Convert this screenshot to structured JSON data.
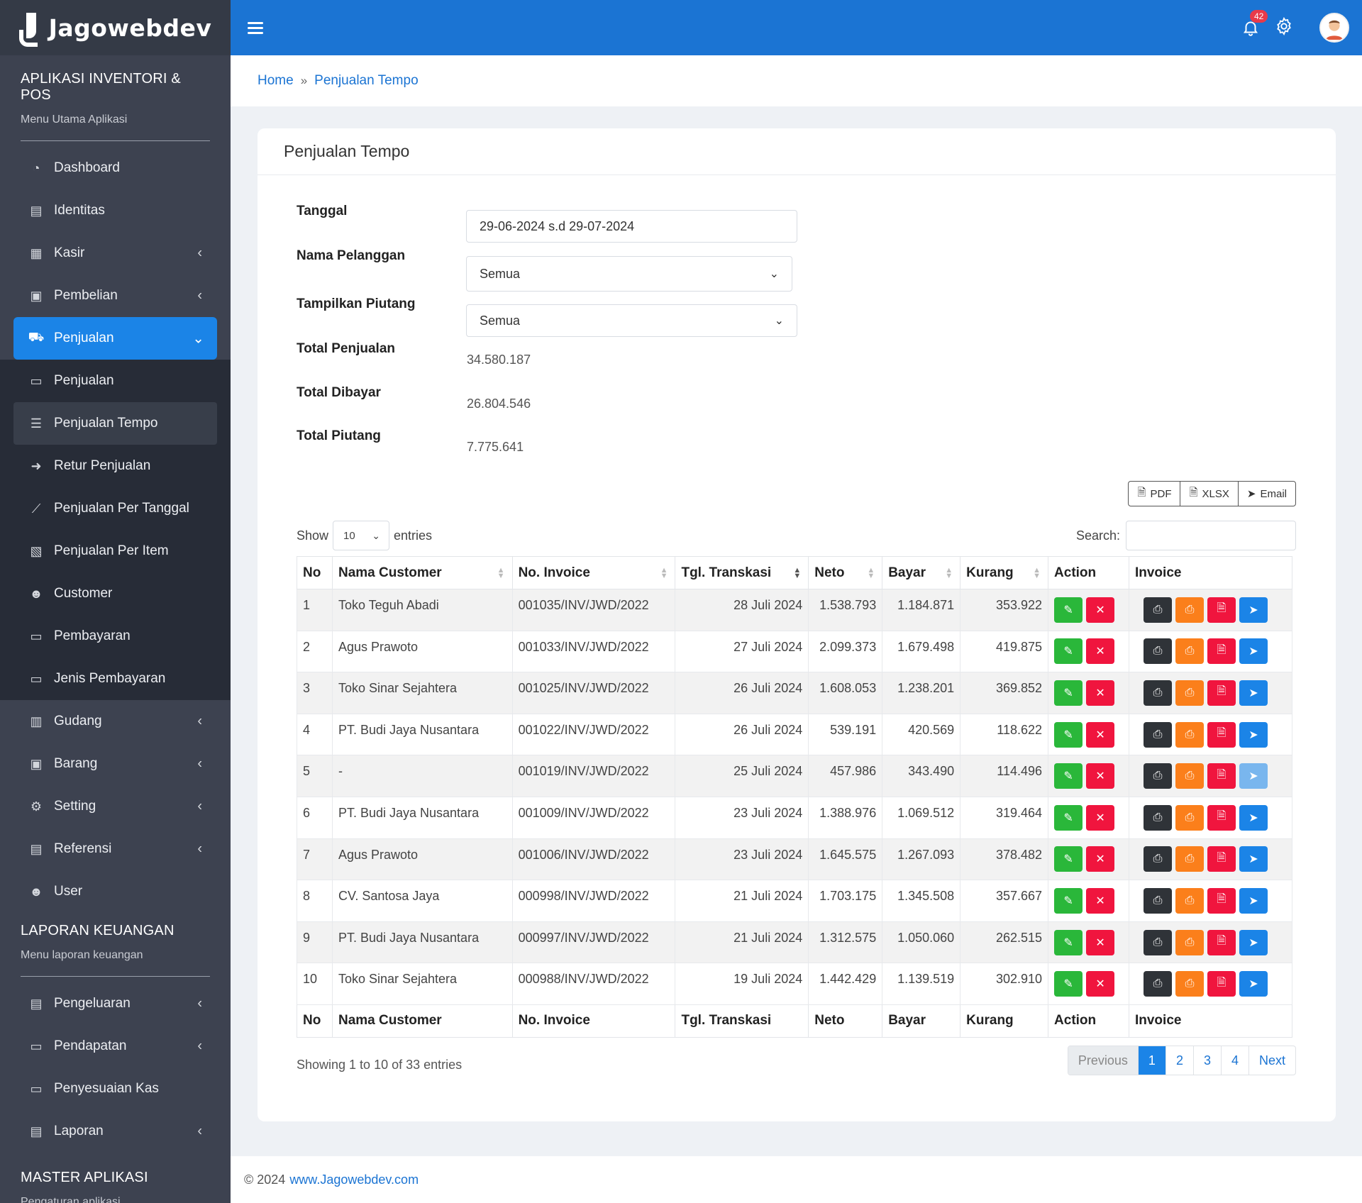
{
  "brand": {
    "name": "Jagowebdev"
  },
  "sidebar": {
    "section1": {
      "title": "APLIKASI INVENTORI & POS",
      "subtitle": "Menu Utama Aplikasi"
    },
    "items": [
      {
        "label": "Dashboard",
        "icon": "dashboard-icon"
      },
      {
        "label": "Identitas",
        "icon": "id-card-icon"
      },
      {
        "label": "Kasir",
        "icon": "cash-register-icon"
      },
      {
        "label": "Pembelian",
        "icon": "shopping-bag-icon"
      },
      {
        "label": "Penjualan",
        "icon": "cart-icon"
      }
    ],
    "submenu": [
      {
        "label": "Penjualan"
      },
      {
        "label": "Penjualan Tempo"
      },
      {
        "label": "Retur Penjualan"
      },
      {
        "label": "Penjualan Per Tanggal"
      },
      {
        "label": "Penjualan Per Item"
      },
      {
        "label": "Customer"
      },
      {
        "label": "Pembayaran"
      },
      {
        "label": "Jenis Pembayaran"
      }
    ],
    "items2": [
      {
        "label": "Gudang"
      },
      {
        "label": "Barang"
      },
      {
        "label": "Setting"
      },
      {
        "label": "Referensi"
      },
      {
        "label": "User"
      }
    ],
    "section2": {
      "title": "LAPORAN KEUANGAN",
      "subtitle": "Menu laporan keuangan"
    },
    "items3": [
      {
        "label": "Pengeluaran"
      },
      {
        "label": "Pendapatan"
      },
      {
        "label": "Penyesuaian Kas"
      },
      {
        "label": "Laporan"
      }
    ],
    "section3": {
      "title": "MASTER APLIKASI",
      "subtitle": "Pengaturan aplikasi"
    }
  },
  "topbar": {
    "notification_count": "42"
  },
  "breadcrumb": {
    "home": "Home",
    "current": "Penjualan Tempo"
  },
  "card": {
    "title": "Penjualan Tempo",
    "form": {
      "tanggal_label": "Tanggal",
      "tanggal_value": "29-06-2024 s.d 29-07-2024",
      "pelanggan_label": "Nama Pelanggan",
      "pelanggan_value": "Semua",
      "piutang_label": "Tampilkan Piutang",
      "piutang_value": "Semua",
      "total_penjualan_label": "Total Penjualan",
      "total_penjualan_value": "34.580.187",
      "total_dibayar_label": "Total Dibayar",
      "total_dibayar_value": "26.804.546",
      "total_piutang_label": "Total Piutang",
      "total_piutang_value": "7.775.641"
    },
    "export": {
      "pdf": "PDF",
      "xlsx": "XLSX",
      "email": "Email"
    },
    "table_controls": {
      "show": "Show",
      "entries_value": "10",
      "entries": "entries",
      "search": "Search:"
    },
    "columns": [
      "No",
      "Nama Customer",
      "No. Invoice",
      "Tgl. Transkasi",
      "Neto",
      "Bayar",
      "Kurang",
      "Action",
      "Invoice"
    ],
    "rows": [
      {
        "no": "1",
        "customer": "Toko Teguh Abadi",
        "invoice": "001035/INV/JWD/2022",
        "date": "28 Juli 2024",
        "neto": "1.538.793",
        "bayar": "1.184.871",
        "kurang": "353.922"
      },
      {
        "no": "2",
        "customer": "Agus Prawoto",
        "invoice": "001033/INV/JWD/2022",
        "date": "27 Juli 2024",
        "neto": "2.099.373",
        "bayar": "1.679.498",
        "kurang": "419.875"
      },
      {
        "no": "3",
        "customer": "Toko Sinar Sejahtera",
        "invoice": "001025/INV/JWD/2022",
        "date": "26 Juli 2024",
        "neto": "1.608.053",
        "bayar": "1.238.201",
        "kurang": "369.852"
      },
      {
        "no": "4",
        "customer": "PT. Budi Jaya Nusantara",
        "invoice": "001022/INV/JWD/2022",
        "date": "26 Juli 2024",
        "neto": "539.191",
        "bayar": "420.569",
        "kurang": "118.622"
      },
      {
        "no": "5",
        "customer": "-",
        "invoice": "001019/INV/JWD/2022",
        "date": "25 Juli 2024",
        "neto": "457.986",
        "bayar": "343.490",
        "kurang": "114.496"
      },
      {
        "no": "6",
        "customer": "PT. Budi Jaya Nusantara",
        "invoice": "001009/INV/JWD/2022",
        "date": "23 Juli 2024",
        "neto": "1.388.976",
        "bayar": "1.069.512",
        "kurang": "319.464"
      },
      {
        "no": "7",
        "customer": "Agus Prawoto",
        "invoice": "001006/INV/JWD/2022",
        "date": "23 Juli 2024",
        "neto": "1.645.575",
        "bayar": "1.267.093",
        "kurang": "378.482"
      },
      {
        "no": "8",
        "customer": "CV. Santosa Jaya",
        "invoice": "000998/INV/JWD/2022",
        "date": "21 Juli 2024",
        "neto": "1.703.175",
        "bayar": "1.345.508",
        "kurang": "357.667"
      },
      {
        "no": "9",
        "customer": "PT. Budi Jaya Nusantara",
        "invoice": "000997/INV/JWD/2022",
        "date": "21 Juli 2024",
        "neto": "1.312.575",
        "bayar": "1.050.060",
        "kurang": "262.515"
      },
      {
        "no": "10",
        "customer": "Toko Sinar Sejahtera",
        "invoice": "000988/INV/JWD/2022",
        "date": "19 Juli 2024",
        "neto": "1.442.429",
        "bayar": "1.139.519",
        "kurang": "302.910"
      }
    ],
    "info": "Showing 1 to 10 of 33 entries",
    "pagination": {
      "previous": "Previous",
      "pages": [
        "1",
        "2",
        "3",
        "4"
      ],
      "next": "Next"
    }
  },
  "footer": {
    "copyright": "© 2024",
    "link": "www.Jagowebdev.com"
  },
  "colors": {
    "primary": "#1b84e7",
    "topbar": "#1b74d3",
    "sidebar": "#3d4250",
    "green": "#2ab73a",
    "red": "#f0153e",
    "orange": "#fb7f1b",
    "dark": "#2f3338"
  }
}
